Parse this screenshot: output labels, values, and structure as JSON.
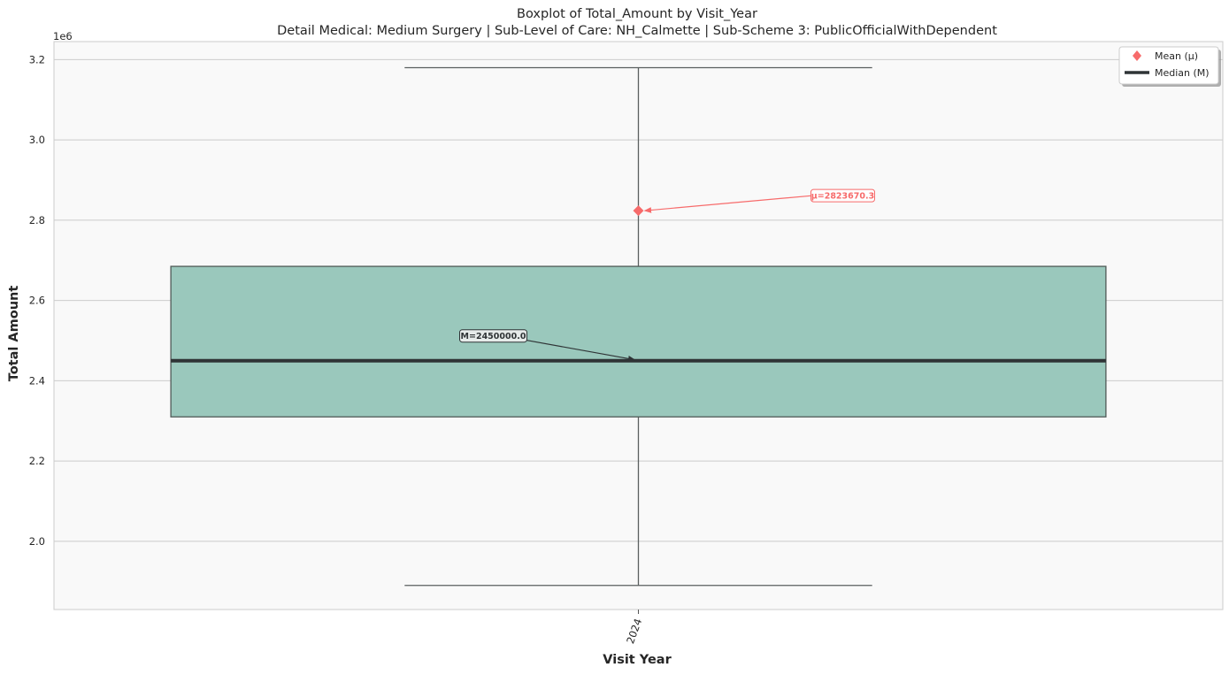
{
  "chart_data": {
    "type": "box",
    "title": "Boxplot of Total_Amount by Visit_Year",
    "subtitle": "Detail Medical: Medium Surgery | Sub-Level of Care: NH_Calmette | Sub-Scheme 3: PublicOfficialWithDependent",
    "xlabel": "Visit Year",
    "ylabel": "Total Amount",
    "y_offset_label": "1e6",
    "y_scale_factor": 1000000,
    "ylim": [
      1.83,
      3.245
    ],
    "y_ticks": [
      2.0,
      2.2,
      2.4,
      2.6,
      2.8,
      3.0,
      3.2
    ],
    "y_tick_labels": [
      "2.0",
      "2.2",
      "2.4",
      "2.6",
      "2.8",
      "3.0",
      "3.2"
    ],
    "categories": [
      "2024"
    ],
    "boxes": [
      {
        "category": "2024",
        "whisker_low": 1.89,
        "q1": 2.31,
        "median": 2.45,
        "q3": 2.685,
        "whisker_high": 3.18,
        "mean": 2.8236703
      }
    ],
    "annotations": {
      "mean_label": "μ=2823670.3",
      "median_label": "M=2450000.0"
    },
    "legend": {
      "placement": "top-right",
      "entries": [
        {
          "label": "Mean (μ)",
          "marker": "diamond",
          "color": "#f76b6b"
        },
        {
          "label": "Median (M)",
          "marker": "line",
          "color": "#2f3436"
        }
      ]
    },
    "colors": {
      "box_fill": "#9ac8bc",
      "box_edge": "#4f5a57",
      "median_line": "#2f3436",
      "mean_marker": "#f76b6b",
      "whisker": "#5a5f5f",
      "plot_background": "#f9f9f9",
      "grid": "#cccccc"
    },
    "grid": true
  }
}
